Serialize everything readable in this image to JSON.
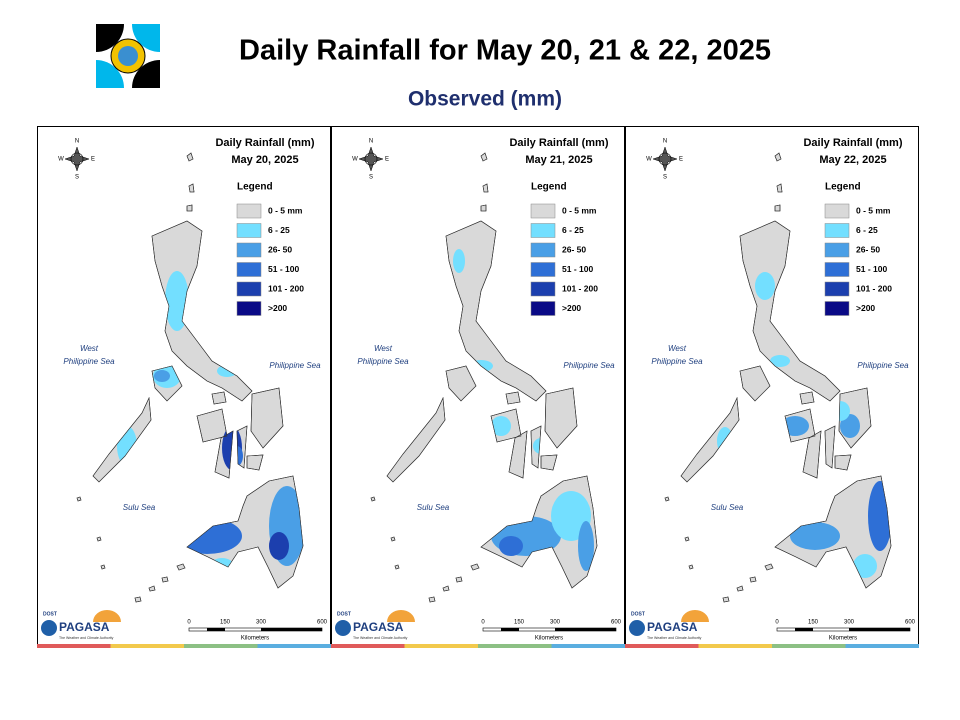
{
  "header": {
    "title": "Daily Rainfall for May 20, 21 & 22, 2025",
    "subtitle": "Observed (mm)"
  },
  "panels": [
    {
      "title": "Daily Rainfall (mm)",
      "date": "May 20, 2025"
    },
    {
      "title": "Daily Rainfall (mm)",
      "date": "May 21, 2025"
    },
    {
      "title": "Daily Rainfall (mm)",
      "date": "May 22, 2025"
    }
  ],
  "legend": {
    "title": "Legend",
    "items": [
      {
        "label": "0 - 5 mm",
        "color": "#d9d9d9"
      },
      {
        "label": "6 - 25",
        "color": "#73dfff"
      },
      {
        "label": "26- 50",
        "color": "#4a9fe6"
      },
      {
        "label": "51 - 100",
        "color": "#2e6fd6"
      },
      {
        "label": "101 - 200",
        "color": "#1c3fae"
      },
      {
        "label": ">200",
        "color": "#0a0a86"
      }
    ]
  },
  "map_labels": {
    "west_sea": [
      "West",
      "Philippine Sea"
    ],
    "east_sea": "Philippine Sea",
    "south_sea": "Sulu Sea",
    "compass": [
      "N",
      "E",
      "S",
      "W"
    ]
  },
  "scale": {
    "ticks": [
      "0",
      "150",
      "300",
      "600"
    ],
    "unit": "Kilometers"
  },
  "logo": {
    "dost": "DOST",
    "agency": "PAGASA",
    "tagline": "The Weather and Climate Authority"
  }
}
